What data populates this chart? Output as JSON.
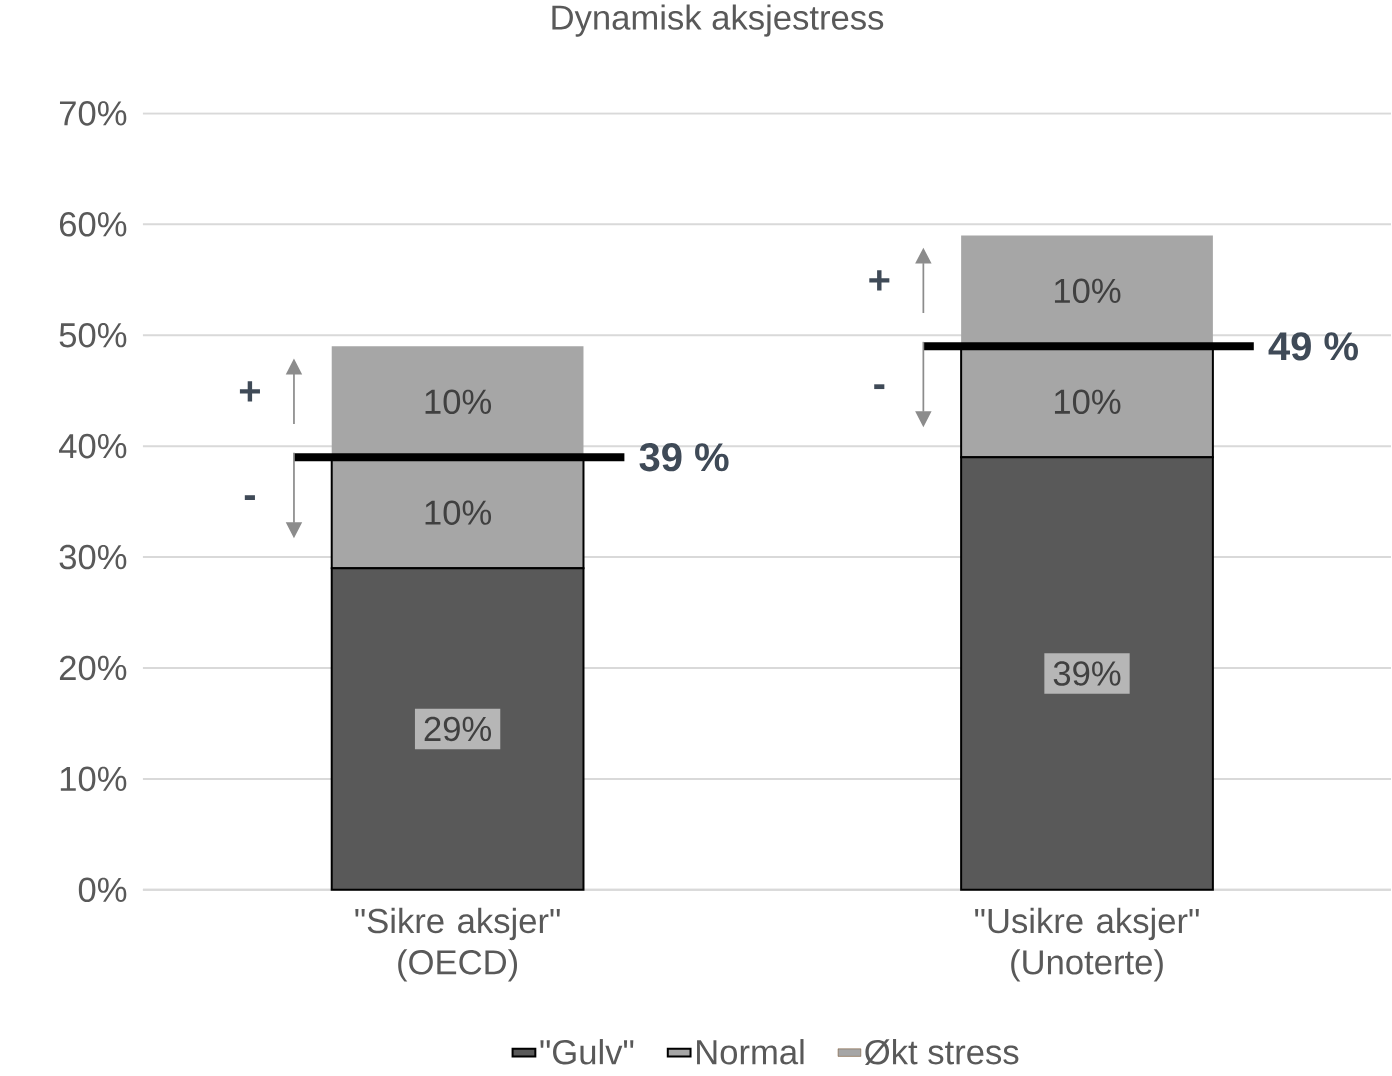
{
  "chart_data": {
    "type": "bar",
    "title": "Dynamisk aksjestress",
    "categories": [
      "\"Sikre aksjer\"\n(OECD)",
      "\"Usikre aksjer\"\n(Unoterte)"
    ],
    "stacked": true,
    "series": [
      {
        "name": "\"Gulv\"",
        "color": "#595959",
        "values": [
          29,
          39
        ],
        "value_labels": [
          "29%",
          "39%"
        ]
      },
      {
        "name": "Normal",
        "color": "#a6a6a6",
        "values": [
          10,
          10
        ],
        "value_labels": [
          "10%",
          "10%"
        ]
      },
      {
        "name": "Økt stress",
        "color": "#a6a6a6",
        "values": [
          10,
          10
        ],
        "value_labels": [
          "10%",
          "10%"
        ]
      }
    ],
    "ylim": [
      0,
      70
    ],
    "yticks": [
      {
        "value": 0,
        "label": "0%"
      },
      {
        "value": 10,
        "label": "10%"
      },
      {
        "value": 20,
        "label": "20%"
      },
      {
        "value": 30,
        "label": "30%"
      },
      {
        "value": 40,
        "label": "40%"
      },
      {
        "value": 50,
        "label": "50%"
      },
      {
        "value": 60,
        "label": "60%"
      },
      {
        "value": 70,
        "label": "70%"
      }
    ],
    "grid": "y",
    "legend": "bottom",
    "annotations": [
      "39 %",
      "+",
      "-",
      "49 %",
      "+",
      "-"
    ]
  }
}
